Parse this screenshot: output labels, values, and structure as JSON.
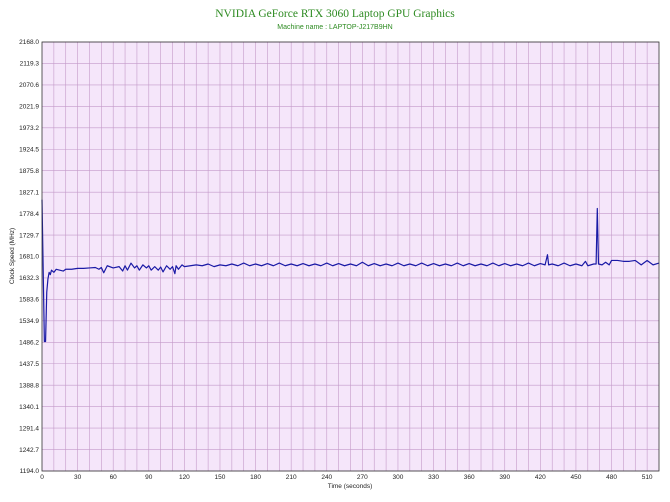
{
  "chart_data": {
    "type": "line",
    "title": "NVIDIA GeForce RTX 3060 Laptop GPU Graphics",
    "subtitle": "Machine name : LAPTOP-J217B9HN",
    "xlabel": "Time (seconds)",
    "ylabel": "Clock Speed (MHz)",
    "xlim": [
      0,
      520
    ],
    "ylim": [
      1194.0,
      2168.0
    ],
    "x_ticks": [
      "0",
      "30",
      "60",
      "90",
      "120",
      "150",
      "180",
      "210",
      "240",
      "270",
      "300",
      "330",
      "360",
      "390",
      "420",
      "450",
      "480",
      "510"
    ],
    "y_ticks": [
      "1194.0",
      "1242.7",
      "1291.4",
      "1340.1",
      "1388.8",
      "1437.5",
      "1486.2",
      "1534.9",
      "1583.6",
      "1632.3",
      "1681.0",
      "1729.7",
      "1778.4",
      "1827.1",
      "1875.8",
      "1924.5",
      "1973.2",
      "2021.9",
      "2070.6",
      "2119.3",
      "2168.0"
    ],
    "grid": true,
    "legend": "none",
    "colors": {
      "plot_background": "#f5e6fa",
      "grid": "#c49ac9",
      "line": "#1a1aa6",
      "title": "#2e8b22"
    },
    "series": [
      {
        "values": [
          [
            0,
            1810
          ],
          [
            1,
            1650
          ],
          [
            2,
            1488
          ],
          [
            3,
            1488
          ],
          [
            4,
            1600
          ],
          [
            5,
            1630
          ],
          [
            6,
            1645
          ],
          [
            7,
            1640
          ],
          [
            8,
            1650
          ],
          [
            10,
            1645
          ],
          [
            12,
            1652
          ],
          [
            15,
            1650
          ],
          [
            18,
            1648
          ],
          [
            20,
            1652
          ],
          [
            25,
            1652
          ],
          [
            30,
            1654
          ],
          [
            35,
            1654
          ],
          [
            40,
            1655
          ],
          [
            45,
            1656
          ],
          [
            48,
            1652
          ],
          [
            50,
            1656
          ],
          [
            52,
            1644
          ],
          [
            55,
            1660
          ],
          [
            60,
            1655
          ],
          [
            65,
            1658
          ],
          [
            68,
            1648
          ],
          [
            70,
            1660
          ],
          [
            72,
            1650
          ],
          [
            75,
            1666
          ],
          [
            78,
            1655
          ],
          [
            80,
            1660
          ],
          [
            82,
            1650
          ],
          [
            85,
            1662
          ],
          [
            88,
            1655
          ],
          [
            90,
            1660
          ],
          [
            92,
            1650
          ],
          [
            95,
            1658
          ],
          [
            98,
            1650
          ],
          [
            100,
            1657
          ],
          [
            102,
            1646
          ],
          [
            105,
            1660
          ],
          [
            108,
            1652
          ],
          [
            110,
            1658
          ],
          [
            112,
            1642
          ],
          [
            113,
            1660
          ],
          [
            115,
            1652
          ],
          [
            118,
            1662
          ],
          [
            120,
            1658
          ],
          [
            125,
            1660
          ],
          [
            130,
            1662
          ],
          [
            135,
            1660
          ],
          [
            140,
            1664
          ],
          [
            145,
            1658
          ],
          [
            150,
            1662
          ],
          [
            155,
            1660
          ],
          [
            160,
            1664
          ],
          [
            165,
            1660
          ],
          [
            170,
            1666
          ],
          [
            175,
            1660
          ],
          [
            180,
            1664
          ],
          [
            185,
            1660
          ],
          [
            190,
            1665
          ],
          [
            195,
            1660
          ],
          [
            200,
            1666
          ],
          [
            205,
            1660
          ],
          [
            210,
            1664
          ],
          [
            215,
            1660
          ],
          [
            220,
            1665
          ],
          [
            225,
            1660
          ],
          [
            230,
            1664
          ],
          [
            235,
            1660
          ],
          [
            240,
            1666
          ],
          [
            245,
            1660
          ],
          [
            250,
            1665
          ],
          [
            255,
            1660
          ],
          [
            260,
            1664
          ],
          [
            265,
            1660
          ],
          [
            270,
            1668
          ],
          [
            275,
            1660
          ],
          [
            280,
            1665
          ],
          [
            285,
            1660
          ],
          [
            290,
            1664
          ],
          [
            295,
            1660
          ],
          [
            300,
            1666
          ],
          [
            305,
            1660
          ],
          [
            310,
            1664
          ],
          [
            315,
            1660
          ],
          [
            320,
            1666
          ],
          [
            325,
            1660
          ],
          [
            330,
            1665
          ],
          [
            335,
            1660
          ],
          [
            340,
            1664
          ],
          [
            345,
            1660
          ],
          [
            350,
            1666
          ],
          [
            355,
            1660
          ],
          [
            360,
            1665
          ],
          [
            365,
            1660
          ],
          [
            370,
            1664
          ],
          [
            375,
            1660
          ],
          [
            380,
            1666
          ],
          [
            385,
            1660
          ],
          [
            390,
            1665
          ],
          [
            395,
            1660
          ],
          [
            400,
            1664
          ],
          [
            405,
            1660
          ],
          [
            410,
            1666
          ],
          [
            415,
            1660
          ],
          [
            420,
            1665
          ],
          [
            424,
            1662
          ],
          [
            426,
            1685
          ],
          [
            427,
            1662
          ],
          [
            430,
            1664
          ],
          [
            435,
            1660
          ],
          [
            440,
            1666
          ],
          [
            445,
            1660
          ],
          [
            450,
            1664
          ],
          [
            455,
            1660
          ],
          [
            458,
            1670
          ],
          [
            460,
            1660
          ],
          [
            465,
            1664
          ],
          [
            467,
            1664
          ],
          [
            468,
            1790
          ],
          [
            469,
            1664
          ],
          [
            472,
            1662
          ],
          [
            475,
            1668
          ],
          [
            478,
            1662
          ],
          [
            480,
            1672
          ],
          [
            485,
            1672
          ],
          [
            490,
            1670
          ],
          [
            495,
            1670
          ],
          [
            500,
            1672
          ],
          [
            505,
            1662
          ],
          [
            510,
            1672
          ],
          [
            515,
            1662
          ],
          [
            520,
            1666
          ]
        ]
      }
    ]
  }
}
